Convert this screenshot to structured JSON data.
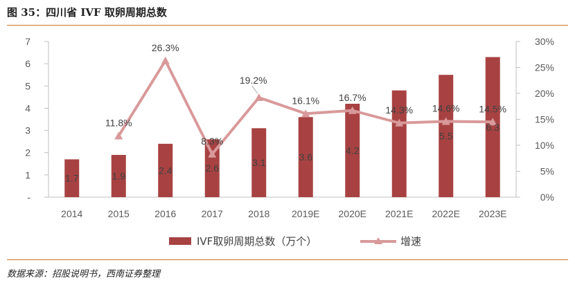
{
  "header": {
    "title": "图 35：四川省 IVF 取卵周期总数"
  },
  "footer": {
    "source": "数据来源：招股说明书，西南证券整理"
  },
  "colors": {
    "bar": "#a84242",
    "line": "#d9999a",
    "rule": "#c9741f"
  },
  "chart_data": {
    "type": "bar+line",
    "categories": [
      "2014",
      "2015",
      "2016",
      "2017",
      "2018",
      "2019E",
      "2020E",
      "2021E",
      "2022E",
      "2023E"
    ],
    "series": [
      {
        "name": "IVF取卵周期总数（万个）",
        "type": "bar",
        "axis": "left",
        "values": [
          1.7,
          1.9,
          2.4,
          2.6,
          3.1,
          3.6,
          4.2,
          4.8,
          5.5,
          6.3
        ]
      },
      {
        "name": "增速",
        "type": "line",
        "axis": "right",
        "values": [
          null,
          11.8,
          26.3,
          8.3,
          19.2,
          16.1,
          16.7,
          14.3,
          14.6,
          14.5
        ]
      }
    ],
    "bar_labels": [
      "1.7",
      "1.9",
      "2.4",
      "2.6",
      "3.1",
      "3.6",
      "4.2",
      "",
      "5.5",
      "6.3"
    ],
    "line_labels": [
      "",
      "11.8%",
      "26.3%",
      "8.3%",
      "19.2%",
      "16.1%",
      "16.7%",
      "14.3%",
      "14.6%",
      "14.5%"
    ],
    "left_axis": {
      "ylim": [
        0,
        7
      ],
      "ticks": [
        "-",
        "1",
        "2",
        "3",
        "4",
        "5",
        "6",
        "7"
      ]
    },
    "right_axis": {
      "ylim": [
        0,
        30
      ],
      "ticks": [
        "0%",
        "5%",
        "10%",
        "15%",
        "20%",
        "25%",
        "30%"
      ]
    },
    "grid": false,
    "legend": "bottom-center"
  }
}
